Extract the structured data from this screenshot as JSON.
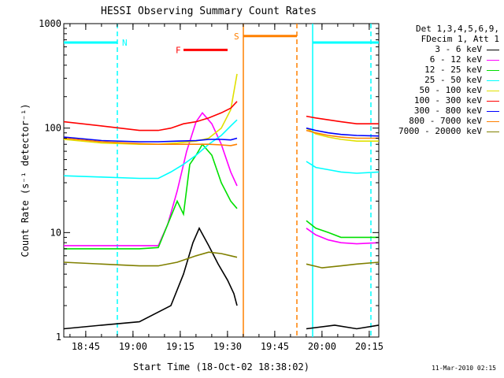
{
  "chart_data": {
    "type": "line",
    "title": "HESSI Observing Summary Count Rates",
    "xlabel": "Start Time (18-Oct-02 18:38:02)",
    "ylabel": "Count Rate (s⁻¹ detector⁻¹)",
    "yscale": "log",
    "ylim": [
      1,
      1000
    ],
    "xlim_minutes": [
      0,
      100
    ],
    "yticks": [
      1,
      10,
      100,
      1000
    ],
    "xticks": [
      {
        "t": 6.97,
        "label": "18:45"
      },
      {
        "t": 21.97,
        "label": "19:00"
      },
      {
        "t": 36.97,
        "label": "19:15"
      },
      {
        "t": 51.97,
        "label": "19:30"
      },
      {
        "t": 66.97,
        "label": "19:45"
      },
      {
        "t": 81.97,
        "label": "20:00"
      },
      {
        "t": 96.97,
        "label": "20:15"
      }
    ],
    "legend_header": [
      "Det 1,3,4,5,6,9,",
      "FDecim 1, Att 1"
    ],
    "series": [
      {
        "name": "3 - 6 keV",
        "color": "#000000",
        "points": [
          [
            0,
            1.2
          ],
          [
            12,
            1.3
          ],
          [
            24,
            1.4
          ],
          [
            34,
            2.0
          ],
          [
            38,
            4.0
          ],
          [
            41,
            8.0
          ],
          [
            43,
            11
          ],
          [
            46,
            7.5
          ],
          [
            49,
            5.0
          ],
          [
            52,
            3.5
          ],
          [
            54,
            2.6
          ],
          [
            55,
            2.0
          ],
          [
            77,
            1.2
          ],
          [
            86,
            1.3
          ],
          [
            93,
            1.2
          ],
          [
            100,
            1.3
          ]
        ]
      },
      {
        "name": "6 - 12 keV",
        "color": "#ff00ff",
        "points": [
          [
            0,
            7.5
          ],
          [
            12,
            7.5
          ],
          [
            24,
            7.5
          ],
          [
            30,
            7.5
          ],
          [
            33,
            12
          ],
          [
            36,
            25
          ],
          [
            39,
            60
          ],
          [
            42,
            115
          ],
          [
            44,
            140
          ],
          [
            47,
            110
          ],
          [
            50,
            70
          ],
          [
            53,
            38
          ],
          [
            55,
            28
          ],
          [
            77,
            11
          ],
          [
            80,
            9.5
          ],
          [
            84,
            8.5
          ],
          [
            88,
            8.0
          ],
          [
            93,
            7.8
          ],
          [
            100,
            8.0
          ]
        ]
      },
      {
        "name": "12 - 25 keV",
        "color": "#00e000",
        "points": [
          [
            0,
            7.0
          ],
          [
            12,
            7.0
          ],
          [
            24,
            7.0
          ],
          [
            30,
            7.2
          ],
          [
            33,
            12
          ],
          [
            36,
            20
          ],
          [
            38,
            15
          ],
          [
            40,
            45
          ],
          [
            42,
            55
          ],
          [
            44,
            70
          ],
          [
            47,
            55
          ],
          [
            50,
            30
          ],
          [
            53,
            20
          ],
          [
            55,
            17
          ],
          [
            77,
            13
          ],
          [
            80,
            11
          ],
          [
            84,
            10
          ],
          [
            88,
            9
          ],
          [
            93,
            9
          ],
          [
            100,
            9
          ]
        ]
      },
      {
        "name": "25 - 50 keV",
        "color": "#00ffff",
        "points": [
          [
            0,
            35
          ],
          [
            12,
            34
          ],
          [
            24,
            33
          ],
          [
            30,
            33
          ],
          [
            34,
            38
          ],
          [
            38,
            45
          ],
          [
            42,
            55
          ],
          [
            46,
            70
          ],
          [
            50,
            85
          ],
          [
            53,
            105
          ],
          [
            55,
            120
          ],
          [
            77,
            48
          ],
          [
            80,
            42
          ],
          [
            84,
            40
          ],
          [
            88,
            38
          ],
          [
            93,
            37
          ],
          [
            100,
            38
          ]
        ]
      },
      {
        "name": "50 - 100 keV",
        "color": "#e0e000",
        "points": [
          [
            0,
            78
          ],
          [
            12,
            72
          ],
          [
            24,
            70
          ],
          [
            30,
            70
          ],
          [
            36,
            72
          ],
          [
            42,
            75
          ],
          [
            46,
            80
          ],
          [
            50,
            100
          ],
          [
            53,
            150
          ],
          [
            55,
            330
          ],
          [
            77,
            100
          ],
          [
            80,
            88
          ],
          [
            84,
            82
          ],
          [
            88,
            78
          ],
          [
            93,
            75
          ],
          [
            100,
            75
          ]
        ]
      },
      {
        "name": "100 - 300 keV",
        "color": "#ff0000",
        "points": [
          [
            0,
            115
          ],
          [
            12,
            105
          ],
          [
            24,
            95
          ],
          [
            30,
            95
          ],
          [
            34,
            100
          ],
          [
            38,
            110
          ],
          [
            42,
            115
          ],
          [
            46,
            125
          ],
          [
            50,
            140
          ],
          [
            53,
            155
          ],
          [
            55,
            180
          ],
          [
            77,
            130
          ],
          [
            80,
            125
          ],
          [
            84,
            120
          ],
          [
            88,
            115
          ],
          [
            93,
            110
          ],
          [
            100,
            110
          ]
        ]
      },
      {
        "name": "300 - 800 keV",
        "color": "#0000ff",
        "points": [
          [
            0,
            82
          ],
          [
            12,
            76
          ],
          [
            24,
            74
          ],
          [
            30,
            74
          ],
          [
            36,
            75
          ],
          [
            42,
            76
          ],
          [
            46,
            78
          ],
          [
            50,
            78
          ],
          [
            53,
            77
          ],
          [
            55,
            80
          ],
          [
            77,
            100
          ],
          [
            80,
            95
          ],
          [
            84,
            90
          ],
          [
            88,
            87
          ],
          [
            93,
            85
          ],
          [
            100,
            84
          ]
        ]
      },
      {
        "name": "800 - 7000 keV",
        "color": "#ff8000",
        "points": [
          [
            0,
            80
          ],
          [
            12,
            74
          ],
          [
            24,
            71
          ],
          [
            30,
            70
          ],
          [
            36,
            70
          ],
          [
            42,
            70
          ],
          [
            46,
            70
          ],
          [
            50,
            69
          ],
          [
            53,
            68
          ],
          [
            55,
            70
          ],
          [
            77,
            95
          ],
          [
            80,
            90
          ],
          [
            84,
            85
          ],
          [
            88,
            82
          ],
          [
            93,
            80
          ],
          [
            100,
            80
          ]
        ]
      },
      {
        "name": "7000 - 20000 keV",
        "color": "#808000",
        "points": [
          [
            0,
            5.2
          ],
          [
            12,
            5.0
          ],
          [
            24,
            4.8
          ],
          [
            30,
            4.8
          ],
          [
            36,
            5.2
          ],
          [
            42,
            6.0
          ],
          [
            46,
            6.5
          ],
          [
            50,
            6.3
          ],
          [
            53,
            6.0
          ],
          [
            55,
            5.8
          ],
          [
            77,
            5.0
          ],
          [
            82,
            4.6
          ],
          [
            88,
            4.8
          ],
          [
            93,
            5.0
          ],
          [
            100,
            5.2
          ]
        ]
      }
    ],
    "annotations": [
      {
        "label": "N",
        "color": "#00ffff",
        "level": 660,
        "spans": [
          [
            0,
            17
          ],
          [
            79,
            100
          ]
        ],
        "markers": [
          [
            17,
            "dashed"
          ],
          [
            79,
            "solid"
          ],
          [
            97.5,
            "dashed"
          ]
        ]
      },
      {
        "label": "F",
        "color": "#ff0000",
        "level": 560,
        "spans": [
          [
            38,
            52
          ]
        ],
        "markers": []
      },
      {
        "label": "S",
        "color": "#ff8000",
        "level": 760,
        "spans": [
          [
            57,
            74
          ]
        ],
        "markers": [
          [
            57,
            "solid"
          ],
          [
            74,
            "dashed"
          ]
        ]
      }
    ],
    "date_stamp": "11-Mar-2010 02:15"
  }
}
